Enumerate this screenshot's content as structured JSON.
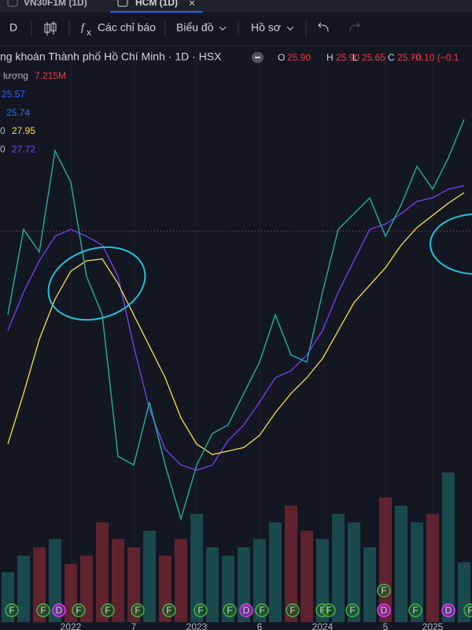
{
  "tabs": [
    {
      "label": "VN30F1M (1D)"
    },
    {
      "label": "HCM (1D)"
    }
  ],
  "toolbar": {
    "interval": "D",
    "fx": "f",
    "indicators": "Các chỉ báo",
    "chart": "Biểu đồ",
    "profile": "Hồ sơ"
  },
  "legend": {
    "symbol": "ng khoán Thành phố Hồ Chí Minh · 1D · HSX",
    "ohlc": [
      {
        "label": "O",
        "value": "25.90"
      },
      {
        "label": "H",
        "value": "25.90"
      },
      {
        "label": "L",
        "value": "25.65"
      },
      {
        "label": "C",
        "value": "25.70"
      }
    ],
    "change": "−0.10 (−0.1"
  },
  "indicators": [
    {
      "label": "lượng",
      "value": "7.215M",
      "color": "#f23645"
    },
    {
      "value": "25.57",
      "color": "#2962ff"
    },
    {
      "value": "25.74",
      "color": "#3d6bf0"
    },
    {
      "label": "0",
      "value": "27.95",
      "color": "#f7e04b"
    },
    {
      "label": "0",
      "value": "27.72",
      "color": "#7e3ff2"
    }
  ],
  "events": [
    "F",
    "F",
    "D",
    "F",
    "F",
    "F",
    "F",
    "F",
    "F",
    "D",
    "F",
    "F",
    "F",
    "F",
    "F",
    "D",
    "F",
    "F",
    "D",
    "F"
  ],
  "chart_data": {
    "type": "line",
    "categories": [
      null,
      null,
      null,
      null,
      "2022",
      null,
      null,
      null,
      "7",
      null,
      null,
      null,
      "2023",
      null,
      null,
      null,
      "6",
      null,
      null,
      null,
      "2024",
      null,
      null,
      null,
      "5",
      null,
      null,
      "2025",
      null,
      null
    ],
    "ylim": [
      3.3,
      35.1
    ],
    "last_price": 25.7,
    "series": [
      {
        "color": "#26a69a",
        "values": [
          20.9,
          25.8,
          24.5,
          30.3,
          28.5,
          23.1,
          20.9,
          12.8,
          12.3,
          15.9,
          12.3,
          9.2,
          12.3,
          14.1,
          14.6,
          16.4,
          18.2,
          20.9,
          18.6,
          18.2,
          22.2,
          25.8,
          26.7,
          27.6,
          25.4,
          27.2,
          29.4,
          28.1,
          29.9,
          32.1
        ]
      },
      {
        "color": "#f7e04b",
        "values": [
          13.5,
          16.4,
          19.5,
          21.8,
          23.4,
          24.0,
          24.1,
          22.7,
          20.9,
          19.1,
          17.3,
          15.0,
          13.5,
          12.9,
          13.1,
          13.3,
          14.0,
          15.3,
          16.4,
          17.3,
          18.4,
          20.0,
          21.6,
          22.6,
          23.6,
          24.9,
          25.9,
          26.6,
          27.3,
          27.9
        ]
      },
      {
        "color": "#7e3ff2",
        "values": [
          20.0,
          22.2,
          24.0,
          25.4,
          25.8,
          25.4,
          24.9,
          23.1,
          19.1,
          15.5,
          13.2,
          12.3,
          12.0,
          12.3,
          13.7,
          14.6,
          15.9,
          17.3,
          17.7,
          18.6,
          20.0,
          22.2,
          24.0,
          25.8,
          26.1,
          26.7,
          27.4,
          27.6,
          28.1,
          28.3
        ]
      }
    ],
    "volume": {
      "colors": [
        "#26a69a",
        "#f23645"
      ],
      "values": [
        6,
        8,
        9,
        10,
        7,
        8,
        12,
        10,
        9,
        11,
        8,
        10,
        13,
        9,
        8,
        9,
        10,
        12,
        14,
        11,
        10,
        13,
        12,
        9,
        15,
        14,
        12,
        13,
        18,
        7.215
      ]
    }
  }
}
